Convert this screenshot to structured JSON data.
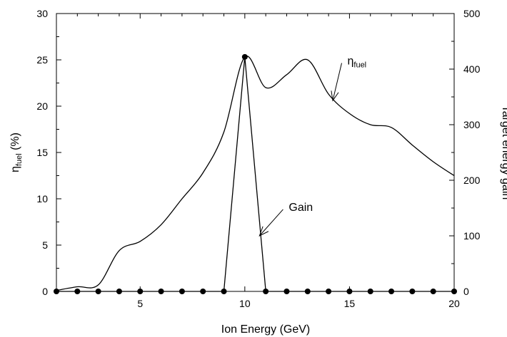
{
  "chart_data": {
    "type": "line",
    "xlabel": "Ion Energy (GeV)",
    "ylabel_left": {
      "main": "η",
      "sub": "fuel",
      "tail": " (%)"
    },
    "ylabel_right": "Target energy gain",
    "xlim": [
      1,
      20
    ],
    "ylim_left": [
      0,
      30
    ],
    "ylim_right": [
      0,
      500
    ],
    "xticks": [
      5,
      10,
      15,
      20
    ],
    "yticks_left": [
      0,
      5,
      10,
      15,
      20,
      25,
      30
    ],
    "yticks_right": [
      0,
      100,
      200,
      300,
      400,
      500
    ],
    "grid": false,
    "series": [
      {
        "key": "eta_fuel",
        "axis": "left",
        "style": "smooth-line",
        "x": [
          1,
          2,
          3,
          4,
          5,
          6,
          7,
          8,
          9,
          10,
          11,
          12,
          13,
          14,
          15,
          16,
          17,
          18,
          19,
          20
        ],
        "values": [
          0.1,
          0.5,
          0.7,
          4.4,
          5.4,
          7.2,
          10.0,
          12.8,
          17.2,
          25.3,
          22.0,
          23.4,
          25.0,
          21.3,
          19.2,
          18.0,
          17.7,
          15.8,
          14.0,
          12.5
        ]
      },
      {
        "key": "gain",
        "axis": "right",
        "style": "line-markers",
        "x": [
          1,
          2,
          3,
          4,
          5,
          6,
          7,
          8,
          9,
          10,
          11,
          12,
          13,
          14,
          15,
          16,
          17,
          18,
          19,
          20
        ],
        "values": [
          0,
          0,
          0,
          0,
          0,
          0,
          0,
          0,
          0,
          422,
          0,
          0,
          0,
          0,
          0,
          0,
          0,
          0,
          0,
          0
        ]
      }
    ],
    "annotations": [
      {
        "main": "η",
        "sub": "fuel",
        "arrow_to": [
          14.2,
          20.6
        ],
        "text_at": [
          14.9,
          24.5
        ]
      },
      {
        "main": "Gain",
        "sub": "",
        "arrow_to": [
          10.7,
          6.0
        ],
        "text_at": [
          12.1,
          8.7
        ]
      }
    ]
  }
}
